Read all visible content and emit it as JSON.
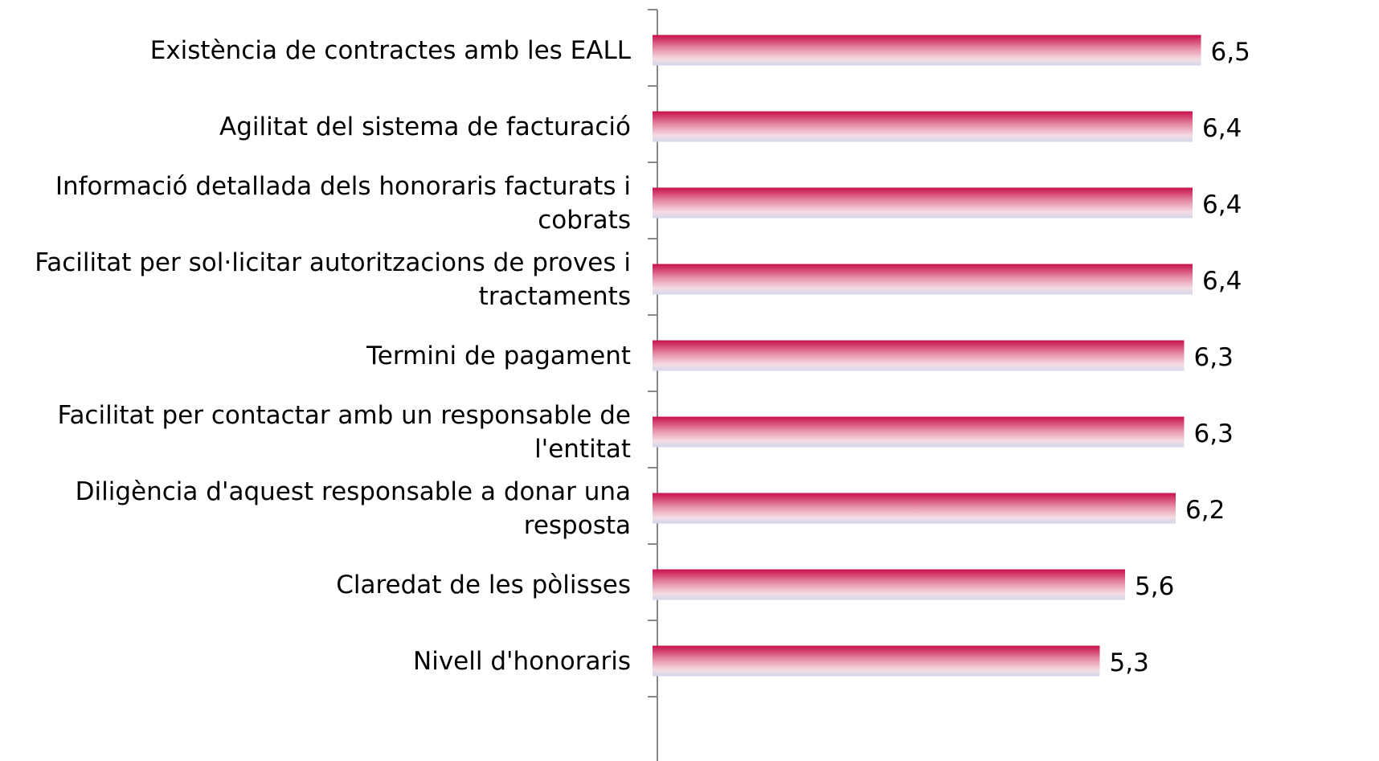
{
  "chart_data": {
    "type": "bar",
    "orientation": "horizontal",
    "categories": [
      "Existència de contractes amb les EALL",
      "Agilitat del sistema de facturació",
      "Informació detallada dels honoraris facturats i cobrats",
      "Facilitat per sol·licitar autoritzacions de proves i tractaments",
      "Termini de pagament",
      "Facilitat per contactar amb un responsable de l'entitat",
      "Diligència d'aquest responsable a donar una resposta",
      "Claredat de les pòlisses",
      "Nivell d'honoraris"
    ],
    "values": [
      6.5,
      6.4,
      6.4,
      6.4,
      6.3,
      6.3,
      6.2,
      5.6,
      5.3
    ],
    "value_labels": [
      "6,5",
      "6,4",
      "6,4",
      "6,4",
      "6,3",
      "6,3",
      "6,2",
      "5,6",
      "5,3"
    ],
    "color": "#c8104a",
    "xlim": [
      0,
      7.2
    ]
  }
}
